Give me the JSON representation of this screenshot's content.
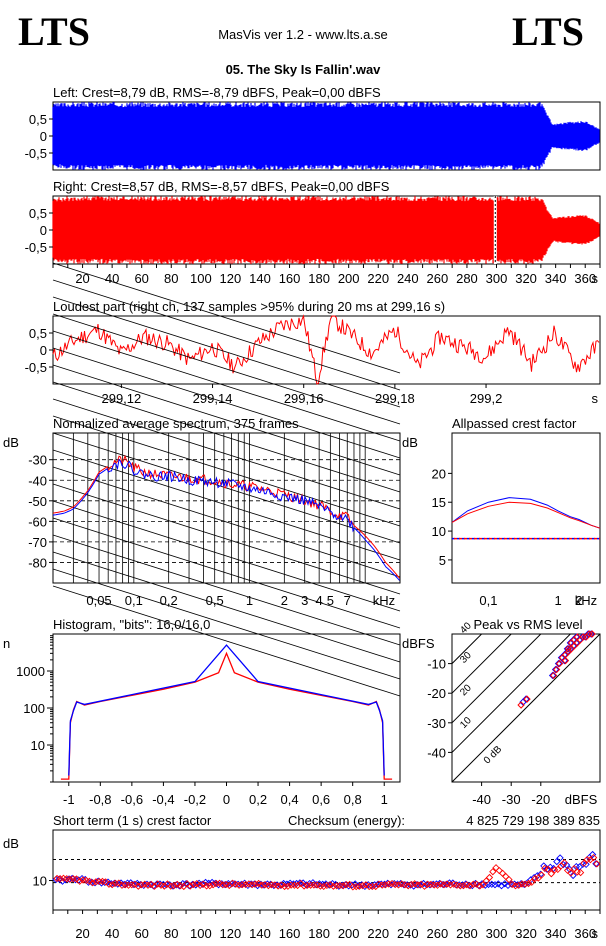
{
  "header": {
    "logo_left": "LTS",
    "logo_right": "LTS",
    "app_title": "MasVis ver 1.2 - www.lts.a.se",
    "file_name": "05. The Sky Is Fallin'.wav"
  },
  "colors": {
    "left": "#0000ff",
    "right": "#ff0000",
    "background": "#ffffff"
  },
  "chart_data": [
    {
      "id": "left-waveform",
      "type": "area",
      "title": "Left: Crest=8,79 dB, RMS=-8,79 dBFS, Peak=0,00 dBFS",
      "y_ticks": [
        "0,5",
        "0",
        "-0,5"
      ],
      "ylim": [
        -1,
        1
      ],
      "xlim": [
        0,
        370
      ],
      "envelope": {
        "x": [
          0,
          10,
          100,
          200,
          280,
          320,
          330,
          338,
          345,
          360,
          370
        ],
        "amp": [
          0.95,
          1,
          1,
          1,
          1,
          1,
          1,
          0.35,
          0.4,
          0.45,
          0.2
        ]
      }
    },
    {
      "id": "right-waveform",
      "type": "area",
      "title": "Right: Crest=8,57 dB, RMS=-8,57 dBFS, Peak=0,00 dBFS",
      "y_ticks": [
        "0,5",
        "0",
        "-0,5"
      ],
      "x_ticks": [
        "20",
        "40",
        "60",
        "80",
        "100",
        "120",
        "140",
        "160",
        "180",
        "200",
        "220",
        "240",
        "260",
        "280",
        "300",
        "320",
        "340",
        "360"
      ],
      "x_unit": "s",
      "ylim": [
        -1,
        1
      ],
      "xlim": [
        0,
        370
      ],
      "marker_x": 299.16,
      "envelope": {
        "x": [
          0,
          10,
          100,
          200,
          280,
          320,
          330,
          338,
          345,
          360,
          370
        ],
        "amp": [
          0.95,
          1,
          1,
          1,
          1,
          1,
          1,
          0.35,
          0.4,
          0.45,
          0.2
        ]
      }
    },
    {
      "id": "loudest-part",
      "type": "line",
      "title": "Loudest part (right ch, 137 samples >95% during 20 ms at 299,16 s)",
      "y_ticks": [
        "0,5",
        "0",
        "-0,5"
      ],
      "x_ticks": [
        "299,12",
        "299,14",
        "299,16",
        "299,18",
        "299,2"
      ],
      "x_unit": "s",
      "xlim": [
        299.105,
        299.225
      ],
      "ylim": [
        -1,
        1
      ],
      "series": [
        {
          "color": "#ff0000",
          "x": [
            299.105,
            299.11,
            299.115,
            299.12,
            299.125,
            299.13,
            299.135,
            299.14,
            299.145,
            299.15,
            299.155,
            299.16,
            299.163,
            299.166,
            299.17,
            299.175,
            299.18,
            299.185,
            299.19,
            299.195,
            299.2,
            299.205,
            299.21,
            299.215,
            299.22,
            299.225
          ],
          "y": [
            -0.2,
            0.3,
            0.6,
            -0.1,
            0.4,
            0.2,
            -0.3,
            0.1,
            -0.5,
            0.2,
            0.7,
            0.9,
            -0.9,
            0.95,
            0.5,
            -0.1,
            0.6,
            -0.5,
            0.4,
            0.1,
            -0.2,
            0.6,
            -0.4,
            0.5,
            -0.5,
            0.2
          ]
        }
      ]
    },
    {
      "id": "avg-spectrum",
      "type": "line",
      "title": "Normalized average spectrum, 375 frames",
      "ylabel": "dB",
      "y_ticks": [
        "-30",
        "-40",
        "-50",
        "-60",
        "-70",
        "-80"
      ],
      "x_ticks": [
        "0,05",
        "0,1",
        "0,2",
        "0,5",
        "1",
        "2",
        "3",
        "4",
        "5",
        "7",
        "kHz"
      ],
      "ylim": [
        -90,
        -17
      ],
      "xlim": [
        0.02,
        20
      ],
      "x_scale": "log",
      "series": [
        {
          "color": "#ff0000",
          "x": [
            0.02,
            0.025,
            0.03,
            0.04,
            0.05,
            0.06,
            0.07,
            0.08,
            0.1,
            0.12,
            0.15,
            0.2,
            0.3,
            0.5,
            0.7,
            1,
            1.5,
            2,
            3,
            4,
            5,
            6,
            7,
            8,
            10,
            12,
            15,
            20
          ],
          "y": [
            -56,
            -55,
            -53,
            -45,
            -36,
            -33,
            -31,
            -30,
            -34,
            -36,
            -37,
            -38,
            -39,
            -40,
            -42,
            -43,
            -45,
            -47,
            -50,
            -52,
            -55,
            -57,
            -58,
            -62,
            -67,
            -72,
            -80,
            -88
          ]
        },
        {
          "color": "#0000ff",
          "x": [
            0.02,
            0.025,
            0.03,
            0.04,
            0.05,
            0.06,
            0.07,
            0.08,
            0.1,
            0.12,
            0.15,
            0.2,
            0.3,
            0.5,
            0.7,
            1,
            1.5,
            2,
            3,
            4,
            5,
            6,
            7,
            8,
            10,
            12,
            15,
            20
          ],
          "y": [
            -57,
            -56,
            -54,
            -46,
            -37,
            -34,
            -32,
            -31,
            -35,
            -37,
            -38,
            -38,
            -40,
            -41,
            -42,
            -44,
            -46,
            -48,
            -50,
            -53,
            -56,
            -57,
            -59,
            -63,
            -69,
            -74,
            -82,
            -89
          ]
        }
      ]
    },
    {
      "id": "allpassed-crest",
      "type": "line",
      "title": "Allpassed crest factor",
      "ylabel": "dB",
      "y_ticks": [
        "20",
        "15",
        "10",
        "5"
      ],
      "x_ticks": [
        "0,1",
        "1",
        "2",
        "kHz"
      ],
      "x_scale": "log",
      "xlim": [
        0.03,
        4
      ],
      "ylim": [
        1,
        27
      ],
      "reference_dB": 8.7,
      "series": [
        {
          "color": "#0000ff",
          "x": [
            0.03,
            0.05,
            0.1,
            0.2,
            0.4,
            0.7,
            1,
            1.5,
            2,
            3,
            4
          ],
          "y": [
            11.5,
            13.5,
            15,
            15.8,
            15.5,
            14.5,
            13.5,
            12.5,
            12,
            11,
            10.5
          ]
        },
        {
          "color": "#ff0000",
          "x": [
            0.03,
            0.05,
            0.1,
            0.2,
            0.4,
            0.7,
            1,
            1.5,
            2,
            3,
            4
          ],
          "y": [
            11.5,
            13,
            14.3,
            15,
            14.8,
            14,
            13.2,
            12.3,
            11.8,
            11,
            10.5
          ]
        }
      ]
    },
    {
      "id": "histogram",
      "type": "line",
      "title": "Histogram, \"bits\": 16,0/16,0",
      "ylabel": "n",
      "y_scale": "log",
      "y_ticks": [
        "1000",
        "100",
        "10"
      ],
      "x_ticks": [
        "-1",
        "-0,8",
        "-0,6",
        "-0,4",
        "-0,2",
        "0",
        "0,2",
        "0,4",
        "0,6",
        "0,8",
        "1"
      ],
      "xlim": [
        -1.1,
        1.1
      ],
      "ylim": [
        1,
        10000
      ],
      "series": [
        {
          "color": "#ff0000",
          "x": [
            -1.05,
            -1.0,
            -0.99,
            -0.97,
            -0.95,
            -0.9,
            -0.8,
            -0.6,
            -0.4,
            -0.2,
            -0.05,
            0,
            0.05,
            0.2,
            0.4,
            0.6,
            0.8,
            0.9,
            0.95,
            0.97,
            0.99,
            1.0,
            1.05
          ],
          "y": [
            1.2,
            1.2,
            40,
            90,
            150,
            120,
            150,
            220,
            320,
            500,
            900,
            3000,
            900,
            500,
            320,
            220,
            150,
            120,
            150,
            90,
            40,
            1.2,
            1.2
          ]
        },
        {
          "color": "#0000ff",
          "x": [
            -1.0,
            -0.99,
            -0.97,
            -0.95,
            -0.9,
            -0.6,
            -0.2,
            0,
            0.2,
            0.6,
            0.9,
            0.95,
            0.97,
            0.99,
            1.0
          ],
          "y": [
            1.5,
            45,
            85,
            145,
            125,
            230,
            520,
            5000,
            520,
            230,
            125,
            145,
            85,
            45,
            1.5
          ]
        }
      ]
    },
    {
      "id": "peak-vs-rms",
      "type": "scatter",
      "title": "Peak vs RMS level",
      "ylabel": "dBFS",
      "y_ticks": [
        "-10",
        "-20",
        "-30",
        "-40"
      ],
      "x_ticks": [
        "-40",
        "-30",
        "-20",
        "dBFS"
      ],
      "xlim": [
        -50,
        0
      ],
      "ylim": [
        -50,
        0
      ],
      "crest_lines": [
        "0 dB",
        "10",
        "20",
        "30",
        "40"
      ],
      "series": [
        {
          "color": "#0000ff",
          "x": [
            -13,
            -12,
            -11,
            -10,
            -9,
            -8,
            -7,
            -12,
            -11,
            -10,
            -9,
            -8,
            -16,
            -15,
            -14,
            -26,
            -25,
            -6,
            -5,
            -4,
            -3
          ],
          "y": [
            -8,
            -7,
            -6,
            -5,
            -4,
            -3,
            -2,
            -9,
            -5,
            -3,
            -2,
            -1,
            -14,
            -12,
            -10,
            -23,
            -22,
            -1,
            -1,
            0,
            0
          ]
        },
        {
          "color": "#ff0000",
          "x": [
            -13,
            -12,
            -11,
            -10,
            -9,
            -8,
            -7,
            -12,
            -11,
            -10,
            -9,
            -8,
            -16,
            -15,
            -14,
            -27,
            -25,
            -6,
            -5,
            -4,
            -3
          ],
          "y": [
            -8,
            -7,
            -6,
            -5,
            -4,
            -3,
            -2,
            -9,
            -5,
            -3,
            -2,
            -1,
            -14,
            -12,
            -10,
            -24,
            -22,
            -1,
            -1,
            0,
            0
          ]
        }
      ]
    },
    {
      "id": "short-term-crest",
      "type": "scatter",
      "title": "Short term (1 s) crest factor",
      "checksum_label": "Checksum (energy):",
      "checksum_value": "4 825 729 198 389 835",
      "ylabel": "dB",
      "y_ticks": [
        "10"
      ],
      "x_ticks": [
        "20",
        "40",
        "60",
        "80",
        "100",
        "120",
        "140",
        "160",
        "180",
        "200",
        "220",
        "240",
        "260",
        "280",
        "300",
        "320",
        "340",
        "360"
      ],
      "x_unit": "s",
      "xlim": [
        0,
        370
      ],
      "ylim": [
        3,
        22
      ],
      "reference_lines": [
        15,
        9.5
      ],
      "series": [
        {
          "color": "#0000ff",
          "x": [
            5,
            15,
            25,
            35,
            50,
            70,
            90,
            110,
            130,
            150,
            170,
            190,
            210,
            230,
            250,
            270,
            290,
            310,
            320,
            335,
            340,
            345,
            350,
            355,
            360,
            365
          ],
          "y": [
            10,
            10.5,
            9.8,
            9.5,
            9.2,
            9.0,
            9.0,
            9.3,
            9.1,
            9.0,
            9.2,
            9.0,
            8.9,
            9.1,
            9.0,
            9.2,
            9.1,
            9.0,
            9.0,
            13,
            14,
            15,
            12,
            13,
            14,
            15
          ]
        },
        {
          "color": "#ff0000",
          "x": [
            5,
            15,
            25,
            35,
            50,
            70,
            90,
            110,
            130,
            150,
            170,
            190,
            210,
            230,
            250,
            270,
            290,
            300,
            310,
            320,
            335,
            340,
            345,
            350,
            355,
            360,
            365
          ],
          "y": [
            10.2,
            10.3,
            9.6,
            9.4,
            9.0,
            8.9,
            8.9,
            9.1,
            9.0,
            8.9,
            9.0,
            8.8,
            8.8,
            9.0,
            8.9,
            9.0,
            9.0,
            13.2,
            9.0,
            9.0,
            12.5,
            13.5,
            14.5,
            11.5,
            12.5,
            13.5,
            14.5
          ]
        }
      ]
    }
  ]
}
